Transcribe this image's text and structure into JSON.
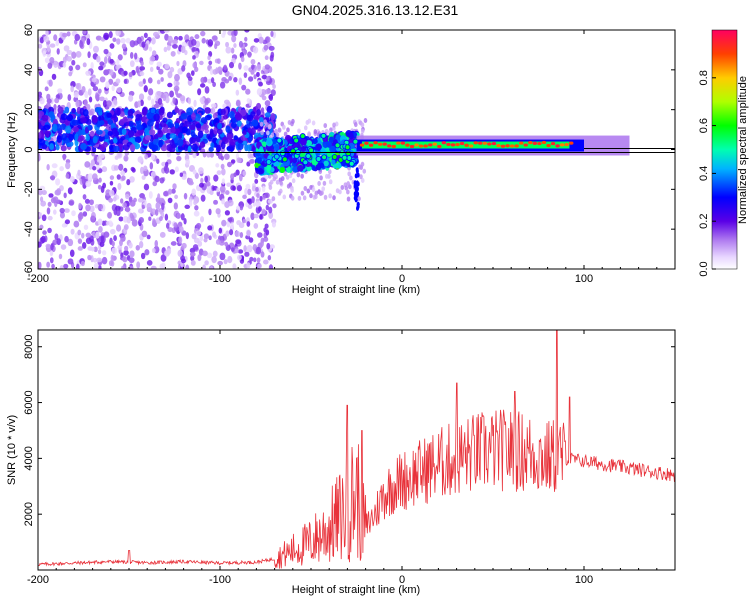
{
  "title": "GN04.2025.316.13.12.E31",
  "chart_data": [
    {
      "type": "heatmap",
      "xlabel": "Height of straight line (km)",
      "ylabel": "Frequency (Hz)",
      "xlim": [
        -200,
        150
      ],
      "ylim": [
        -60,
        60
      ],
      "xticks": [
        -200,
        -100,
        0,
        100
      ],
      "yticks": [
        -60,
        -40,
        -20,
        0,
        20,
        40,
        60
      ],
      "colorbar": {
        "label": "Normalized spectral amplitude",
        "range": [
          0,
          1
        ],
        "ticks": [
          "0.0",
          "0.2",
          "0.4",
          "0.6",
          "0.8"
        ]
      },
      "regions": [
        {
          "name": "noise scatter",
          "x_range": [
            -200,
            -70
          ],
          "freq_range": [
            -60,
            60
          ],
          "amplitude": 0.15
        },
        {
          "name": "noise band",
          "x_range": [
            -200,
            -70
          ],
          "freq_range": [
            0,
            20
          ],
          "amplitude": 0.25
        },
        {
          "name": "transition band",
          "x_range": [
            -80,
            -25
          ],
          "freq_range": [
            -20,
            10
          ],
          "amplitude": 0.35
        },
        {
          "name": "meteor line",
          "x_range": [
            -25,
            120
          ],
          "freq_range": [
            0,
            5
          ],
          "amplitude": 0.95
        }
      ],
      "reference_line_hz": 0
    },
    {
      "type": "line",
      "xlabel": "Height of straight line (km)",
      "ylabel": "SNR (10 * v/v)",
      "xlim": [
        -200,
        150
      ],
      "ylim": [
        0,
        8600
      ],
      "xticks": [
        -200,
        -100,
        0,
        100
      ],
      "yticks": [
        2000,
        4000,
        6000,
        8000
      ],
      "series": [
        {
          "color": "#e8323a",
          "x": [
            -200,
            -180,
            -160,
            -140,
            -120,
            -100,
            -80,
            -70,
            -60,
            -50,
            -40,
            -30,
            -25,
            -20,
            -15,
            -10,
            -5,
            0,
            10,
            20,
            30,
            40,
            50,
            60,
            70,
            80,
            85,
            90,
            100,
            110,
            120,
            130,
            140,
            150
          ],
          "y": [
            200,
            250,
            300,
            260,
            300,
            250,
            280,
            400,
            700,
            1000,
            1500,
            2200,
            2800,
            1500,
            2000,
            2700,
            3000,
            3200,
            3500,
            3800,
            4000,
            4200,
            4300,
            4300,
            4200,
            4000,
            4100,
            4000,
            3900,
            3800,
            3700,
            3600,
            3500,
            3400
          ],
          "spikes": [
            {
              "x": -150,
              "y": 700
            },
            {
              "x": -30,
              "y": 5900
            },
            {
              "x": -22,
              "y": 5000
            },
            {
              "x": 30,
              "y": 6700
            },
            {
              "x": 62,
              "y": 6400
            },
            {
              "x": 85,
              "y": 8600
            },
            {
              "x": 92,
              "y": 6200
            }
          ]
        }
      ]
    }
  ]
}
